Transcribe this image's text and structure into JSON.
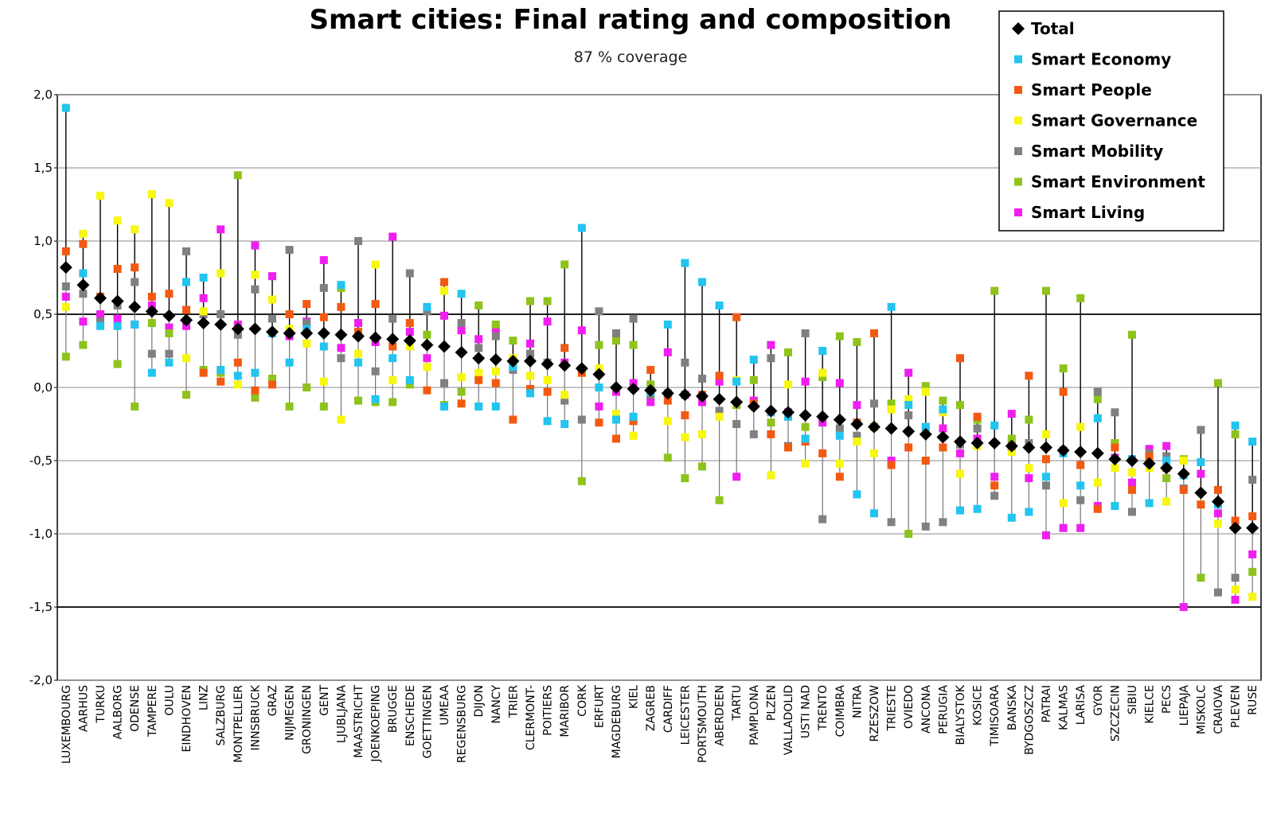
{
  "chart_data": {
    "type": "scatter",
    "title": "Smart cities: Final rating and composition",
    "subtitle": "87 % coverage",
    "xlabel": "",
    "ylabel": "",
    "ylim": [
      -2.0,
      2.0
    ],
    "yticks": [
      "2,0",
      "1,5",
      "1,0",
      "0,5",
      "0,0",
      "-0,5",
      "-1,0",
      "-1,5",
      "-2,0"
    ],
    "ytick_values": [
      2.0,
      1.5,
      1.0,
      0.5,
      0.0,
      -0.5,
      -1.0,
      -1.5,
      -2.0
    ],
    "grid": true,
    "legend_position": "top-right",
    "categories": [
      "LUXEMBOURG",
      "AARHUS",
      "TURKU",
      "AALBORG",
      "ODENSE",
      "TAMPERE",
      "OULU",
      "EINDHOVEN",
      "LINZ",
      "SALZBURG",
      "MONTPELLIER",
      "INNSBRUCK",
      "GRAZ",
      "NIJMEGEN",
      "GRONINGEN",
      "GENT",
      "LJUBLJANA",
      "MAASTRICHT",
      "JOENKOEPING",
      "BRUGGE",
      "ENSCHEDE",
      "GOETTINGEN",
      "UMEAA",
      "REGENSBURG",
      "DIJON",
      "NANCY",
      "TRIER",
      "CLERMONT-",
      "POITIERS",
      "MARIBOR",
      "CORK",
      "ERFURT",
      "MAGDEBURG",
      "KIEL",
      "ZAGREB",
      "CARDIFF",
      "LEICESTER",
      "PORTSMOUTH",
      "ABERDEEN",
      "TARTU",
      "PAMPLONA",
      "PLZEN",
      "VALLADOLID",
      "USTI NAD",
      "TRENTO",
      "COIMBRA",
      "NITRA",
      "RZESZOW",
      "TRIESTE",
      "OVIEDO",
      "ANCONA",
      "PERUGIA",
      "BIALYSTOK",
      "KOSICE",
      "TIMISOARA",
      "BANSKA",
      "BYDGOSZCZ",
      "PATRAI",
      "KALMAS",
      "LARISA",
      "GYOR",
      "SZCZECIN",
      "SIBIU",
      "KIELCE",
      "PECS",
      "LIEPAJA",
      "MISKOLC",
      "CRAIOVA",
      "PLEVEN",
      "RUSE"
    ],
    "series": [
      {
        "name": "Total",
        "color": "#000000",
        "marker": "diamond",
        "values": [
          0.82,
          0.7,
          0.61,
          0.59,
          0.55,
          0.52,
          0.49,
          0.46,
          0.44,
          0.43,
          0.4,
          0.4,
          0.38,
          0.37,
          0.37,
          0.37,
          0.36,
          0.35,
          0.34,
          0.33,
          0.32,
          0.29,
          0.28,
          0.24,
          0.2,
          0.19,
          0.18,
          0.18,
          0.16,
          0.15,
          0.13,
          0.09,
          0.0,
          -0.01,
          -0.02,
          -0.04,
          -0.05,
          -0.06,
          -0.08,
          -0.1,
          -0.13,
          -0.16,
          -0.17,
          -0.19,
          -0.2,
          -0.22,
          -0.25,
          -0.27,
          -0.28,
          -0.3,
          -0.32,
          -0.34,
          -0.37,
          -0.38,
          -0.38,
          -0.4,
          -0.41,
          -0.41,
          -0.43,
          -0.44,
          -0.45,
          -0.49,
          -0.5,
          -0.52,
          -0.55,
          -0.59,
          -0.72,
          -0.78,
          -0.96,
          -0.96
        ]
      },
      {
        "name": "Smart Economy",
        "color": "#22c4f0",
        "marker": "square",
        "values": [
          1.91,
          0.78,
          0.42,
          0.42,
          0.43,
          0.1,
          0.17,
          0.72,
          0.75,
          0.12,
          0.08,
          0.1,
          0.37,
          0.17,
          0.4,
          0.28,
          0.7,
          0.17,
          -0.08,
          0.2,
          0.05,
          0.55,
          -0.13,
          0.64,
          -0.13,
          -0.13,
          0.14,
          -0.04,
          -0.23,
          -0.25,
          1.09,
          0.0,
          -0.22,
          -0.2,
          -0.03,
          0.43,
          0.85,
          0.72,
          0.56,
          0.04,
          0.19,
          -0.17,
          -0.2,
          -0.35,
          0.25,
          -0.33,
          -0.73,
          -0.86,
          0.55,
          -0.12,
          -0.27,
          -0.15,
          -0.84,
          -0.83,
          -0.26,
          -0.89,
          -0.85,
          -0.61,
          -0.45,
          -0.67,
          -0.21,
          -0.81,
          -0.49,
          -0.79,
          -0.5,
          -0.6,
          -0.51,
          -0.8,
          -0.26,
          -0.37
        ]
      },
      {
        "name": "Smart People",
        "color": "#f25a12",
        "marker": "square",
        "values": [
          0.93,
          0.98,
          0.62,
          0.81,
          0.82,
          0.62,
          0.64,
          0.53,
          0.1,
          0.04,
          0.17,
          -0.02,
          0.02,
          0.5,
          0.57,
          0.48,
          0.55,
          0.38,
          0.57,
          0.28,
          0.44,
          -0.02,
          0.72,
          -0.11,
          0.05,
          0.03,
          -0.22,
          -0.01,
          -0.03,
          0.27,
          0.1,
          -0.24,
          -0.35,
          -0.23,
          0.12,
          -0.09,
          -0.19,
          -0.05,
          0.08,
          0.48,
          -0.11,
          -0.32,
          -0.41,
          -0.37,
          -0.45,
          -0.61,
          -0.24,
          0.37,
          -0.53,
          -0.41,
          -0.5,
          -0.41,
          0.2,
          -0.2,
          -0.67,
          -0.4,
          0.08,
          -0.49,
          -0.03,
          -0.53,
          -0.83,
          -0.41,
          -0.7,
          -0.47,
          -0.55,
          -0.7,
          -0.8,
          -0.7,
          -0.91,
          -0.88
        ]
      },
      {
        "name": "Smart Governance",
        "color": "#f7f70f",
        "marker": "square",
        "values": [
          0.55,
          1.05,
          1.31,
          1.14,
          1.08,
          1.32,
          1.26,
          0.2,
          0.52,
          0.78,
          0.02,
          0.77,
          0.6,
          0.4,
          0.3,
          0.04,
          -0.22,
          0.23,
          0.84,
          0.05,
          0.28,
          0.14,
          0.66,
          0.07,
          0.1,
          0.11,
          0.2,
          0.08,
          0.05,
          -0.05,
          0.1,
          0.13,
          -0.18,
          -0.33,
          -0.03,
          -0.23,
          -0.34,
          -0.32,
          -0.2,
          0.05,
          -0.12,
          -0.6,
          0.02,
          -0.52,
          0.1,
          -0.52,
          -0.37,
          -0.45,
          -0.15,
          -0.08,
          -0.03,
          -0.17,
          -0.59,
          -0.4,
          -0.67,
          -0.44,
          -0.55,
          -0.32,
          -0.79,
          -0.27,
          -0.65,
          -0.55,
          -0.58,
          -0.55,
          -0.78,
          -0.5,
          -0.8,
          -0.93,
          -1.38,
          -1.43
        ]
      },
      {
        "name": "Smart Mobility",
        "color": "#808080",
        "marker": "square",
        "values": [
          0.69,
          0.64,
          0.45,
          0.56,
          0.72,
          0.23,
          0.23,
          0.93,
          0.5,
          0.5,
          0.36,
          0.67,
          0.47,
          0.94,
          0.44,
          0.68,
          0.2,
          1.0,
          0.11,
          0.47,
          0.78,
          0.52,
          0.03,
          0.44,
          0.27,
          0.35,
          0.12,
          0.23,
          0.17,
          -0.09,
          -0.22,
          0.52,
          0.37,
          0.47,
          -0.05,
          -0.04,
          0.17,
          0.06,
          -0.16,
          -0.25,
          -0.32,
          0.2,
          -0.4,
          0.37,
          -0.9,
          -0.28,
          -0.33,
          -0.11,
          -0.92,
          -0.19,
          -0.95,
          -0.92,
          -0.39,
          -0.28,
          -0.74,
          -0.41,
          -0.38,
          -0.67,
          -0.43,
          -0.77,
          -0.03,
          -0.17,
          -0.85,
          -0.45,
          -0.47,
          -0.69,
          -0.29,
          -1.4,
          -1.3,
          -0.63
        ]
      },
      {
        "name": "Smart Environment",
        "color": "#8ec31c",
        "marker": "square",
        "values": [
          0.21,
          0.29,
          0.44,
          0.16,
          -0.13,
          0.44,
          0.37,
          -0.05,
          0.12,
          0.1,
          1.45,
          -0.07,
          0.06,
          -0.13,
          0.0,
          -0.13,
          0.68,
          -0.09,
          -0.1,
          -0.1,
          0.02,
          0.36,
          -0.12,
          -0.03,
          0.56,
          0.43,
          0.32,
          0.59,
          0.59,
          0.84,
          -0.64,
          0.29,
          0.32,
          0.29,
          0.02,
          -0.48,
          -0.62,
          -0.54,
          -0.77,
          -0.12,
          0.05,
          -0.24,
          0.24,
          -0.27,
          0.07,
          0.35,
          0.31,
          -0.27,
          -0.11,
          -1.0,
          0.01,
          -0.09,
          -0.12,
          -0.22,
          0.66,
          -0.35,
          -0.22,
          0.66,
          0.13,
          0.61,
          -0.08,
          -0.38,
          0.36,
          -0.51,
          -0.62,
          -0.49,
          -1.3,
          0.03,
          -0.32,
          -1.26
        ]
      },
      {
        "name": "Smart Living",
        "color": "#f01ef0",
        "marker": "square",
        "values": [
          0.62,
          0.45,
          0.5,
          0.47,
          0.43,
          0.56,
          0.41,
          0.42,
          0.61,
          1.08,
          0.43,
          0.97,
          0.76,
          0.35,
          0.45,
          0.87,
          0.27,
          0.44,
          0.31,
          1.03,
          0.38,
          0.2,
          0.49,
          0.39,
          0.33,
          0.4,
          0.15,
          0.3,
          0.45,
          0.17,
          0.39,
          -0.13,
          -0.03,
          0.03,
          -0.1,
          0.24,
          -0.05,
          -0.1,
          0.04,
          -0.61,
          -0.09,
          0.29,
          -0.17,
          0.04,
          -0.24,
          0.03,
          -0.12,
          -0.27,
          -0.5,
          0.1,
          -0.27,
          -0.28,
          -0.45,
          -0.35,
          -0.61,
          -0.18,
          -0.62,
          -1.01,
          -0.96,
          -0.96,
          -0.81,
          -0.48,
          -0.65,
          -0.42,
          -0.4,
          -1.5,
          -0.59,
          -0.86,
          -1.45,
          -1.14
        ]
      }
    ]
  }
}
